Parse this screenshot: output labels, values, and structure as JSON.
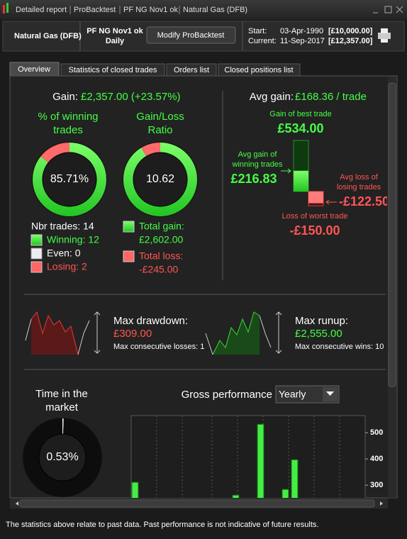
{
  "title_bar": [
    "Detailed report",
    "ProBacktest",
    "PF NG Nov1 ok",
    "Natural Gas (DFB)"
  ],
  "header": {
    "instrument": "Natural Gas (DFB)",
    "system": "PF NG Nov1 ok",
    "period": "Daily",
    "button": "Modify ProBacktest",
    "start_label": "Start:",
    "start_date": "03-Apr-1990",
    "start_value": "[£10,000.00]",
    "current_label": "Current:",
    "current_date": "11-Sep-2017",
    "current_value": "[£12,357.00]"
  },
  "tabs": [
    "Overview",
    "Statistics of closed trades",
    "Orders list",
    "Closed positions list"
  ],
  "overview": {
    "gain_label": "Gain:",
    "gain_value": "£2,357.00 (+23.57%)",
    "winning": {
      "title": "% of winning trades",
      "value": 85.71,
      "value_label": "85.71%"
    },
    "ratio": {
      "title": "Gain/Loss Ratio",
      "value": 10.62
    },
    "trades": {
      "total": "Nbr trades: 14",
      "winning": "Winning: 12",
      "even": "Even: 0",
      "losing": "Losing: 2"
    },
    "total_gain": {
      "label": "Total gain:",
      "value": "£2,602.00"
    },
    "total_loss": {
      "label": "Total loss:",
      "value": "-£245.00"
    },
    "avg_gain": {
      "label": "Avg gain:",
      "value": "£168.36 / trade"
    },
    "trade_chart": {
      "best": {
        "label": "Gain of best trade",
        "value": 534,
        "value_label": "£534.00"
      },
      "avg_win": {
        "label": "Avg gain of winning trades",
        "value": 216.83,
        "value_label": "£216.83"
      },
      "avg_loss": {
        "label": "Avg loss of losing trades",
        "value": -122.5,
        "value_label": "-£122.50"
      },
      "worst": {
        "label": "Loss of worst trade",
        "value": -150,
        "value_label": "-£150.00"
      }
    },
    "drawdown": {
      "label": "Max drawdown:",
      "value": "£309.00",
      "note": "Max consecutive losses: 1"
    },
    "runup": {
      "label": "Max runup:",
      "value": "£2,555.00",
      "note": "Max consecutive wins: 10"
    },
    "time_in_market": {
      "title": "Time in the market",
      "value": 0.53,
      "value_label": "0.53%"
    },
    "gross_performance": {
      "type": "bar",
      "title": "Gross performance",
      "period": "Yearly",
      "values": [
        311,
        262,
        532,
        284,
        397
      ],
      "ylim": [
        249,
        565
      ],
      "yticks": [
        300,
        400,
        500
      ],
      "color": "#44ee44"
    }
  },
  "footer": "The statistics above relate to past data. Past performance is not indicative of future results."
}
